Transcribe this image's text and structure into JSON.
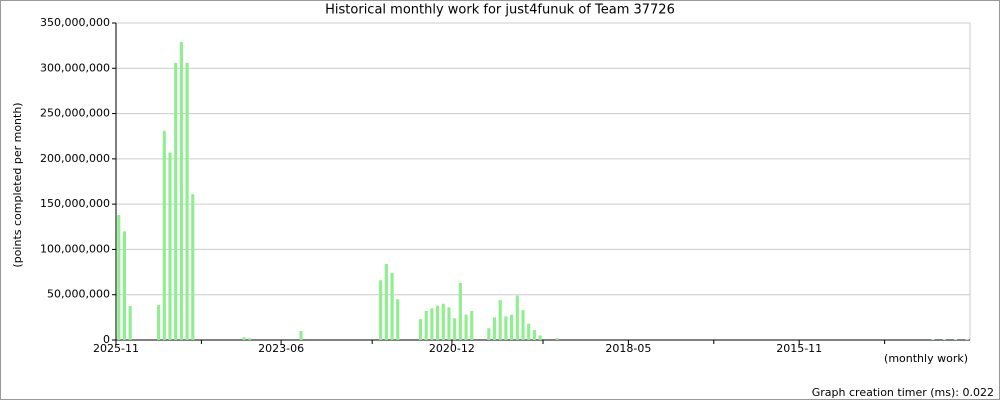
{
  "chart_data": {
    "type": "bar",
    "title": "Historical monthly work for just4funuk of Team 37726",
    "y_label": "(points completed per month)",
    "x_label": "(monthly work)",
    "footer": "Graph creation timer (ms): 0.022",
    "color": "#90ee90",
    "grid": true,
    "ylim": [
      0,
      350000000
    ],
    "yticks": [
      0,
      {
        "value": 50000000,
        "label": "50,000,000"
      },
      {
        "value": 100000000,
        "label": "100,000,000"
      },
      {
        "value": 150000000,
        "label": "150,000,000"
      },
      {
        "value": 200000000,
        "label": "200,000,000"
      },
      {
        "value": 250000000,
        "label": "250,000,000"
      },
      {
        "value": 300000000,
        "label": "300,000,000"
      },
      {
        "value": 350000000,
        "label": "350,000,000"
      }
    ],
    "categories": [
      "2025-11",
      null,
      null,
      null,
      null,
      null,
      null,
      null,
      null,
      null,
      null,
      null,
      null,
      null,
      null,
      null,
      null,
      null,
      null,
      null,
      null,
      null,
      null,
      null,
      null,
      null,
      null,
      null,
      null,
      "2023-06",
      null,
      null,
      null,
      null,
      null,
      null,
      null,
      null,
      null,
      null,
      null,
      null,
      null,
      null,
      null,
      null,
      null,
      null,
      null,
      null,
      null,
      null,
      null,
      null,
      null,
      null,
      null,
      null,
      null,
      "2020-12",
      null,
      null,
      null,
      null,
      null,
      null,
      null,
      null,
      null,
      null,
      null,
      null,
      null,
      null,
      null,
      null,
      null,
      null,
      null,
      null,
      null,
      null,
      null,
      null,
      null,
      null,
      null,
      null,
      null,
      null,
      "2018-05",
      null,
      null,
      null,
      null,
      null,
      null,
      null,
      null,
      null,
      null,
      null,
      null,
      null,
      null,
      null,
      null,
      null,
      null,
      null,
      null,
      null,
      null,
      null,
      null,
      null,
      null,
      null,
      null,
      null,
      "2015-11",
      null,
      null,
      null,
      null,
      null,
      null,
      null,
      null,
      null,
      null,
      null,
      null,
      null,
      null,
      null,
      null,
      null,
      null,
      null,
      null,
      null,
      null,
      null,
      null,
      null,
      null,
      null,
      null,
      null
    ],
    "values": [
      138000000,
      120000000,
      37500000,
      0,
      0,
      0,
      0,
      38600000,
      231000000,
      207000000,
      306000000,
      329000000,
      306000000,
      161000000,
      0,
      0,
      0,
      0,
      0,
      0,
      0,
      0,
      3000000,
      2000000,
      0,
      0,
      0,
      0,
      0,
      0,
      0,
      0,
      10000000,
      0,
      0,
      0,
      0,
      0,
      0,
      0,
      0,
      0,
      0,
      0,
      0,
      0,
      66000000,
      84000000,
      74000000,
      45000000,
      0,
      0,
      0,
      23000000,
      32000000,
      35000000,
      38000000,
      40000000,
      36000000,
      24000000,
      63000000,
      28000000,
      32000000,
      0,
      0,
      13000000,
      25000000,
      44000000,
      26000000,
      28000000,
      49000000,
      33000000,
      18000000,
      11000000,
      5000000,
      0,
      0,
      2000000,
      0,
      0,
      0,
      0,
      0,
      0,
      0,
      0,
      0,
      0,
      0,
      0,
      0,
      0,
      0,
      0,
      0,
      0,
      0,
      0,
      0,
      0,
      0,
      0,
      0,
      0,
      0,
      0,
      0,
      0,
      0,
      0,
      0,
      0,
      0,
      0,
      0,
      0,
      0,
      0,
      0,
      0,
      0,
      0,
      0,
      0,
      0,
      0,
      0,
      0,
      0,
      0,
      0,
      0,
      0,
      0,
      0,
      0,
      0,
      0,
      0,
      0,
      0,
      0,
      0,
      500000,
      0,
      500000,
      0,
      500000,
      0,
      500000
    ]
  }
}
